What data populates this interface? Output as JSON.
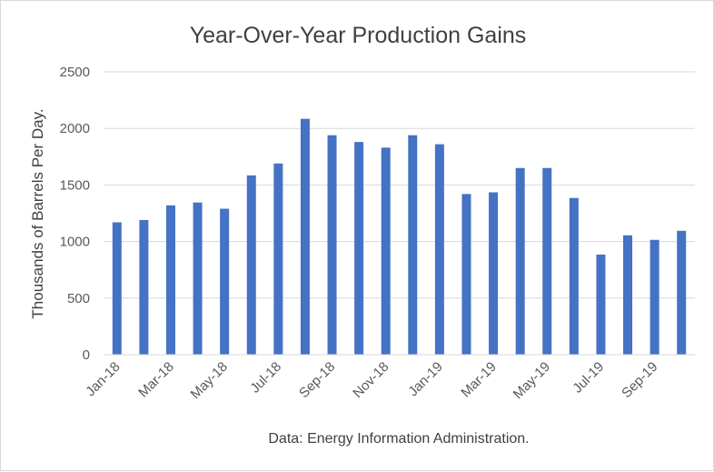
{
  "chart_data": {
    "type": "bar",
    "title": "Year-Over-Year Production Gains",
    "xlabel": "",
    "ylabel": "Thousands of Barrels Per Day.",
    "source_note": "Data: Energy Information Administration.",
    "ylim": [
      0,
      2500
    ],
    "yticks": [
      0,
      500,
      1000,
      1500,
      2000,
      2500
    ],
    "grid": true,
    "legend": "none",
    "bar_color": "#4472c4",
    "grid_color": "#d9d9d9",
    "categories": [
      "Jan-18",
      "Feb-18",
      "Mar-18",
      "Apr-18",
      "May-18",
      "Jun-18",
      "Jul-18",
      "Aug-18",
      "Sep-18",
      "Oct-18",
      "Nov-18",
      "Dec-18",
      "Jan-19",
      "Feb-19",
      "Mar-19",
      "Apr-19",
      "May-19",
      "Jun-19",
      "Jul-19",
      "Aug-19",
      "Sep-19",
      "Oct-19"
    ],
    "xtick_labels": [
      "Jan-18",
      "",
      "Mar-18",
      "",
      "May-18",
      "",
      "Jul-18",
      "",
      "Sep-18",
      "",
      "Nov-18",
      "",
      "Jan-19",
      "",
      "Mar-19",
      "",
      "May-19",
      "",
      "Jul-19",
      "",
      "Sep-19",
      ""
    ],
    "values": [
      1170,
      1190,
      1320,
      1345,
      1290,
      1585,
      1690,
      2085,
      1940,
      1880,
      1830,
      1940,
      1860,
      1420,
      1435,
      1650,
      1650,
      1385,
      885,
      1055,
      1015,
      1095
    ]
  }
}
